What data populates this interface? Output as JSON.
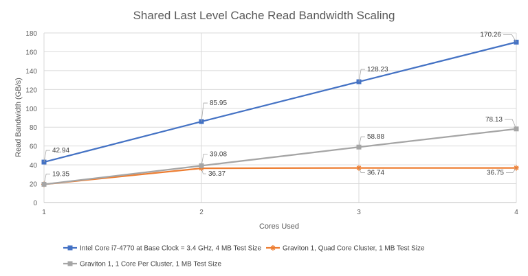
{
  "chart_data": {
    "type": "line",
    "title": "Shared Last Level Cache Read Bandwidth Scaling",
    "xlabel": "Cores Used",
    "ylabel": "Read Bandwidth (GB/s)",
    "x": [
      1,
      2,
      3,
      4
    ],
    "xlim": [
      1,
      4
    ],
    "ylim": [
      0,
      180
    ],
    "ytick_step": 20,
    "grid": true,
    "legend_position": "bottom",
    "series": [
      {
        "name": "Intel Core i7-4770 at Base Clock = 3.4 GHz, 4 MB Test Size",
        "color": "#4472c4",
        "marker": "square",
        "values": [
          42.94,
          85.95,
          128.23,
          170.26
        ],
        "labels": [
          "42.94",
          "85.95",
          "128.23",
          "170.26"
        ]
      },
      {
        "name": "Graviton 1, Quad Core Cluster, 1 MB Test Size",
        "color": "#ed7d31",
        "marker": "star",
        "values": [
          19.35,
          36.37,
          36.74,
          36.75
        ],
        "labels": [
          "",
          "36.37",
          "36.74",
          "36.75"
        ]
      },
      {
        "name": "Graviton 1, 1 Core Per Cluster, 1 MB Test Size",
        "color": "#a5a5a5",
        "marker": "square",
        "values": [
          19.35,
          39.08,
          58.88,
          78.13
        ],
        "labels": [
          "19.35",
          "39.08",
          "58.88",
          "78.13"
        ]
      }
    ]
  }
}
